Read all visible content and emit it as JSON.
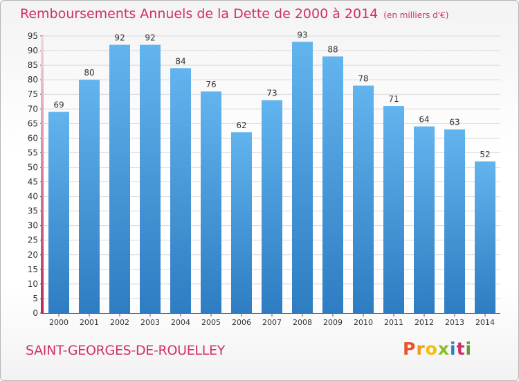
{
  "header": {
    "title": "Remboursements Annuels de la Dette de 2000 à 2014",
    "unit": "(en milliers d'€)"
  },
  "footer": {
    "commune": "SAINT-GEORGES-DE-ROUELLEY",
    "logo_text": "Proxiti"
  },
  "colors": {
    "title": "#d0306a",
    "bar_light": "#62b4ee",
    "bar_dark": "#2e7cc2",
    "axis": "#c0306a",
    "grid": "#d8d8d8"
  },
  "chart_data": {
    "type": "bar",
    "title": "Remboursements Annuels de la Dette de 2000 à 2014",
    "subtitle": "(en milliers d'€)",
    "xlabel": "",
    "ylabel": "",
    "categories": [
      "2000",
      "2001",
      "2002",
      "2003",
      "2004",
      "2005",
      "2006",
      "2007",
      "2008",
      "2009",
      "2010",
      "2011",
      "2012",
      "2013",
      "2014"
    ],
    "values": [
      69,
      80,
      92,
      92,
      84,
      76,
      62,
      73,
      93,
      88,
      78,
      71,
      64,
      63,
      52
    ],
    "ylim": [
      0,
      95
    ],
    "yticks": [
      0,
      5,
      10,
      15,
      20,
      25,
      30,
      35,
      40,
      45,
      50,
      55,
      60,
      65,
      70,
      75,
      80,
      85,
      90,
      95
    ],
    "grid": true,
    "data_labels": true,
    "legend": "none"
  }
}
